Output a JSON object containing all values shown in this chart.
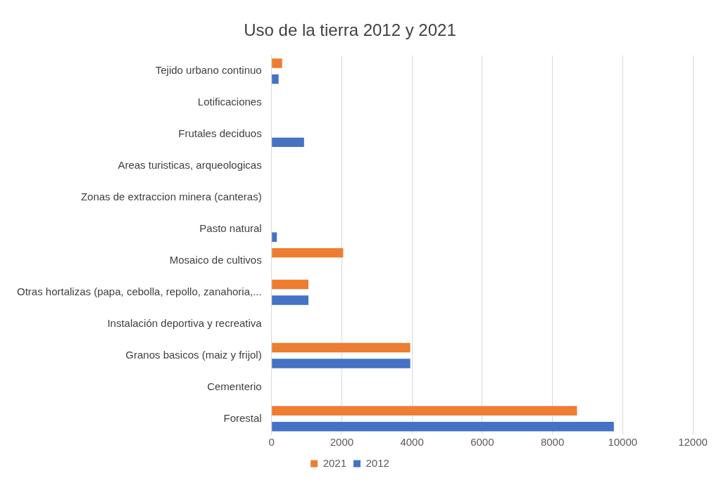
{
  "chart_data": {
    "type": "bar",
    "orientation": "horizontal",
    "title": "Uso de la tierra 2012 y 2021",
    "categories": [
      "Tejido urbano continuo",
      "Lotificaciones",
      "Frutales deciduos",
      "Areas turisticas, arqueologicas",
      "Zonas de extraccion minera (canteras)",
      "Pasto natural",
      "Mosaico de cultivos",
      "Otras hortalizas (papa, cebolla, repollo, zanahoria,...",
      "Instalación deportiva y recreativa",
      "Granos basicos (maiz y frijol)",
      "Cementerio",
      "Forestal"
    ],
    "series": [
      {
        "name": "2021",
        "color": "#ed7d31",
        "values": [
          300,
          0,
          0,
          0,
          0,
          0,
          2040,
          1050,
          0,
          3950,
          0,
          8700
        ]
      },
      {
        "name": "2012",
        "color": "#4472c4",
        "values": [
          200,
          0,
          925,
          0,
          0,
          150,
          0,
          1050,
          0,
          3950,
          0,
          9750
        ]
      }
    ],
    "xlim": [
      0,
      12000
    ],
    "xticks": [
      0,
      2000,
      4000,
      6000,
      8000,
      10000,
      12000
    ],
    "grid": "x",
    "legend": "bottom"
  }
}
